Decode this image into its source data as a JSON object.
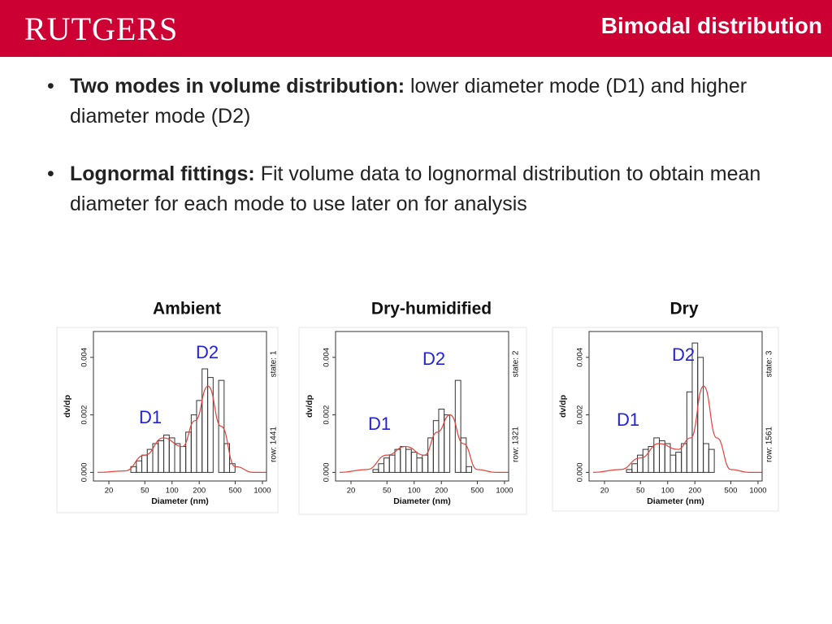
{
  "header": {
    "logo": "RUTGERS",
    "title": "Bimodal distribution"
  },
  "bullets": [
    {
      "bold": "Two modes in volume distribution:",
      "text": " lower diameter mode (D1) and higher diameter mode (D2)"
    },
    {
      "bold": "Lognormal fittings:",
      "text": " Fit volume data to lognormal distribution to obtain mean diameter for each mode to use later on for analysis"
    }
  ],
  "chart_data": [
    {
      "type": "histogram",
      "title": "Ambient",
      "xlabel": "Diameter (nm)",
      "ylabel": "dv/dp",
      "side_labels": [
        "row: 1441",
        "state: 1"
      ],
      "log_x": true,
      "xlim": [
        13.5,
        1110
      ],
      "xticks": [
        20,
        50,
        100,
        200,
        500,
        1000
      ],
      "ylim": [
        -0.0003,
        0.0049
      ],
      "yticks": [
        {
          "value": 0,
          "label": "0.000"
        },
        {
          "value": 0.002,
          "label": "0.002"
        },
        {
          "value": 0.004,
          "label": "0.004"
        }
      ],
      "bins": [
        35,
        40.3,
        46.3,
        53.2,
        61.2,
        70.4,
        81.0,
        93.1,
        107,
        123,
        142,
        163,
        187,
        215,
        248,
        285,
        328,
        377,
        433,
        498,
        573
      ],
      "counts": [
        0.0002,
        0.0004,
        0.0006,
        0.0008,
        0.001,
        0.0011,
        0.0013,
        0.0012,
        0.001,
        0.0009,
        0.0014,
        0.002,
        0.0025,
        0.0036,
        0.0033,
        0.0,
        0.0032,
        0.001,
        0.0003,
        0.0
      ],
      "color": "#333333",
      "fit": {
        "color": "#e8403a",
        "x": [
          15,
          30,
          50,
          80,
          130,
          180,
          250,
          350,
          500,
          800,
          1100
        ],
        "values": [
          0,
          5e-05,
          0.0006,
          0.0012,
          0.0009,
          0.0018,
          0.003,
          0.0016,
          0.0002,
          0,
          0
        ]
      },
      "annotations": [
        {
          "text": "D1"
        },
        {
          "text": "D2"
        }
      ]
    },
    {
      "type": "histogram",
      "title": "Dry-humidified",
      "xlabel": "Diameter (nm)",
      "ylabel": "dv/dp",
      "side_labels": [
        "row: 1321",
        "state: 2"
      ],
      "log_x": true,
      "xlim": [
        13.5,
        1110
      ],
      "xticks": [
        20,
        50,
        100,
        200,
        500,
        1000
      ],
      "ylim": [
        -0.0003,
        0.0049
      ],
      "yticks": [
        {
          "value": 0,
          "label": "0.000"
        },
        {
          "value": 0.002,
          "label": "0.002"
        },
        {
          "value": 0.004,
          "label": "0.004"
        }
      ],
      "bins": [
        35,
        40.3,
        46.3,
        53.2,
        61.2,
        70.4,
        81.0,
        93.1,
        107,
        123,
        142,
        163,
        187,
        215,
        248,
        285,
        328,
        377,
        433,
        498,
        573
      ],
      "counts": [
        0.0001,
        0.0003,
        0.0005,
        0.0006,
        0.0008,
        0.0009,
        0.0008,
        0.0007,
        0.0005,
        0.0006,
        0.0012,
        0.0018,
        0.0022,
        0.002,
        0.0,
        0.0032,
        0.0012,
        0.0002,
        0,
        0
      ],
      "color": "#333333",
      "fit": {
        "color": "#e8403a",
        "x": [
          15,
          30,
          50,
          80,
          130,
          180,
          250,
          350,
          500,
          800,
          1100
        ],
        "values": [
          0,
          0.0001,
          0.0006,
          0.0009,
          0.0006,
          0.0014,
          0.002,
          0.001,
          0.0001,
          0,
          0
        ]
      },
      "annotations": [
        {
          "text": "D1"
        },
        {
          "text": "D2"
        }
      ]
    },
    {
      "type": "histogram",
      "title": "Dry",
      "xlabel": "Diameter (nm)",
      "ylabel": "dv/dp",
      "side_labels": [
        "row: 1561",
        "state: 3"
      ],
      "log_x": true,
      "xlim": [
        13.5,
        1110
      ],
      "xticks": [
        20,
        50,
        100,
        200,
        500,
        1000
      ],
      "ylim": [
        -0.0003,
        0.0049
      ],
      "yticks": [
        {
          "value": 0,
          "label": "0.000"
        },
        {
          "value": 0.002,
          "label": "0.002"
        },
        {
          "value": 0.004,
          "label": "0.004"
        }
      ],
      "bins": [
        35,
        40.3,
        46.3,
        53.2,
        61.2,
        70.4,
        81.0,
        93.1,
        107,
        123,
        142,
        163,
        187,
        215,
        248,
        285,
        328,
        377,
        433,
        498,
        573
      ],
      "counts": [
        0.0001,
        0.0003,
        0.0006,
        0.0008,
        0.0009,
        0.0012,
        0.0011,
        0.001,
        0.0006,
        0.0007,
        0.001,
        0.0028,
        0.0045,
        0.004,
        0.001,
        0.0008,
        0.0,
        0,
        0,
        0
      ],
      "color": "#333333",
      "fit": {
        "color": "#e8403a",
        "x": [
          15,
          30,
          50,
          80,
          130,
          180,
          250,
          350,
          500,
          800,
          1100
        ],
        "values": [
          0,
          0.0001,
          0.0005,
          0.001,
          0.0008,
          0.0012,
          0.003,
          0.0012,
          0.0001,
          0,
          0
        ]
      },
      "annotations": [
        {
          "text": "D1"
        },
        {
          "text": "D2"
        }
      ]
    }
  ]
}
